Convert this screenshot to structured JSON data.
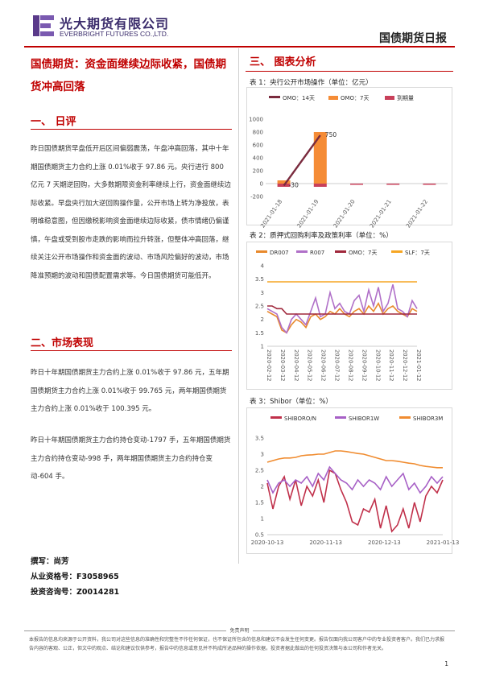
{
  "header": {
    "company_cn": "光大期货有限公司",
    "company_en": "EVERBRIGHT FUTURES CO.,LTD.",
    "report_type": "国债期货日报"
  },
  "left": {
    "title": "国债期货：资金面继续边际收紧，国债期货冲高回落",
    "section1": "一、  日评",
    "para1": "昨日国债期货早盘低开后区间偏弱震荡，午盘冲高回落，其中十年期国债期货主力合约上涨 0.01%收于 97.86 元。央行进行 800 亿元 7 天期逆回购，大多数期限资金利率继续上行，资金面继续边际收紧。早盘央行加大逆回购操作量，公开市场上转为净投放，表明维稳意图，但因缴税影响资金面继续边际收紧，债市情绪仍偏谨慎，午盘或受到股市走跌的影响而拉升转涨，但整体冲高回落，继续关注公开市场操作和资金面的波动、市场风险偏好的波动，市场降准预期的波动和国债配置需求等。今日国债期货可能低开。",
    "section2": "二、市场表现",
    "para2": "昨日十年期国债期货主力合约上涨 0.01%收于 97.86 元，五年期国债期货主力合约上涨 0.01%收于 99.765 元，两年期国债期货主力合约上涨 0.01%收于 100.395 元。",
    "para3": "昨日十年期国债期货主力合约持仓变动-1797 手，五年期国债期货主力合约持仓变动-998 手，两年期国债期货主力合约持仓变动-604 手。",
    "author": "撰写：尚芳",
    "cert": "从业资格号：F3058965",
    "advisor": "投资咨询号：Z0014281"
  },
  "right": {
    "section3": "三、  图表分析",
    "fig1_caption": "表 1：央行公开市场操作（单位：亿元）",
    "fig2_caption": "表 2：质押式回购利率及政策利率（单位：%）",
    "fig3_caption": "表 3：Shibor（单位：%）"
  },
  "footer": {
    "disclaimer_title": "免责声明",
    "disclaimer": "本报告的信息均来源于公开资料，我公司对这些信息的准确性和完整性不作任何保证，也不保证所包含的信息和建议不会发生任何变更。报告仅面向我公司客户中的专业投资者客户。我们已力求报告内容的客观、公正，但文中的观点、结论和建议仅供参考，报告中的信息或意见并不构成所述品种的操作依据，投资者据此做出的任何投资决策与本公司和作者无关。",
    "page": "1"
  },
  "colors": {
    "accent": "#c00000",
    "brand": "#3a2b6b"
  },
  "chart_data": [
    {
      "type": "bar",
      "title": "",
      "legend": [
        "OMO：14天",
        "OMO：7天",
        "到期量"
      ],
      "legend_placement": "top",
      "categories": [
        "2021-01-18",
        "2021-01-19",
        "2021-01-20",
        "2021-01-21",
        "2021-01-22"
      ],
      "series": [
        {
          "name": "OMO：14天",
          "kind": "line",
          "color": "#7a2b3e",
          "values": [
            -30,
            750,
            null,
            null,
            null
          ]
        },
        {
          "name": "OMO：7天",
          "kind": "bar",
          "color": "#f58c36",
          "values": [
            50,
            800,
            0,
            0,
            0
          ]
        },
        {
          "name": "到期量",
          "kind": "bar",
          "color": "#c8405a",
          "values": [
            -50,
            -50,
            -10,
            -10,
            -10
          ]
        }
      ],
      "data_labels": [
        {
          "category": "2021-01-18",
          "value": -30,
          "text": "-30"
        },
        {
          "category": "2021-01-19",
          "value": 750,
          "text": "750"
        }
      ],
      "yticks": [
        1000,
        800,
        600,
        400,
        200,
        0,
        -200
      ],
      "ylim": [
        -200,
        1000
      ],
      "grid": false
    },
    {
      "type": "line",
      "title": "",
      "legend": [
        "DR007",
        "R007",
        "OMO：7天",
        "SLF：7天"
      ],
      "legend_placement": "top",
      "x_ticks": [
        "2020-02-12",
        "2020-03-12",
        "2020-04-12",
        "2020-05-12",
        "2020-06-12",
        "2020-07-12",
        "2020-08-12",
        "2020-09-12",
        "2020-10-12",
        "2020-11-12",
        "2020-12-12",
        "2021-01-12"
      ],
      "yticks": [
        4,
        3.5,
        3,
        2.5,
        2,
        1.5,
        1
      ],
      "ylim": [
        1,
        4
      ],
      "series": [
        {
          "name": "DR007",
          "color": "#e8892c",
          "values": [
            2.3,
            2.2,
            2.1,
            1.6,
            1.5,
            1.8,
            2.0,
            1.9,
            1.7,
            2.1,
            2.2,
            2.0,
            2.1,
            2.3,
            2.2,
            2.4,
            2.2,
            2.1,
            2.3,
            2.4,
            2.2,
            2.5,
            2.3,
            2.6,
            2.2,
            2.4,
            2.5,
            2.3,
            2.2,
            2.1,
            2.4,
            2.3
          ]
        },
        {
          "name": "R007",
          "color": "#b070c8",
          "values": [
            2.4,
            2.3,
            2.2,
            1.7,
            1.5,
            2.0,
            2.2,
            2.0,
            1.8,
            2.3,
            2.8,
            2.1,
            2.2,
            3.0,
            2.4,
            2.6,
            2.3,
            2.2,
            2.7,
            2.9,
            2.3,
            3.1,
            2.5,
            3.2,
            2.3,
            2.6,
            3.3,
            2.4,
            2.3,
            2.1,
            2.7,
            2.4
          ]
        },
        {
          "name": "OMO：7天",
          "color": "#a0283c",
          "values": [
            2.5,
            2.5,
            2.4,
            2.4,
            2.2,
            2.2,
            2.2,
            2.2,
            2.2,
            2.2,
            2.2,
            2.2,
            2.2,
            2.2,
            2.2,
            2.2,
            2.2,
            2.2,
            2.2,
            2.2,
            2.2,
            2.2,
            2.2,
            2.2,
            2.2,
            2.2,
            2.2,
            2.2,
            2.2,
            2.2,
            2.2,
            2.2
          ]
        },
        {
          "name": "SLF：7天",
          "color": "#f6a623",
          "values": [
            3.4,
            3.4,
            3.4,
            3.4,
            3.4,
            3.4,
            3.4,
            3.4,
            3.4,
            3.4,
            3.4,
            3.4,
            3.4,
            3.4,
            3.4,
            3.4,
            3.4,
            3.4,
            3.4,
            3.4,
            3.4,
            3.4,
            3.4,
            3.4,
            3.4,
            3.4,
            3.4,
            3.4,
            3.4,
            3.4,
            3.4,
            3.4
          ]
        }
      ],
      "grid": false
    },
    {
      "type": "line",
      "title": "",
      "legend": [
        "SHIBORO/N",
        "SHIBOR1W",
        "SHIBOR3M"
      ],
      "legend_placement": "top",
      "x_ticks": [
        "2020-10-13",
        "2020-11-13",
        "2020-12-13",
        "2021-01-13"
      ],
      "yticks": [
        3.5,
        3,
        2.5,
        2,
        1.5,
        1,
        0.5
      ],
      "ylim": [
        0.5,
        3.5
      ],
      "series": [
        {
          "name": "SHIBORO/N",
          "color": "#c0304a",
          "values": [
            2.1,
            1.3,
            2.0,
            2.3,
            1.6,
            2.2,
            1.4,
            2.0,
            1.7,
            2.2,
            1.5,
            2.5,
            2.4,
            1.9,
            1.5,
            0.9,
            0.8,
            1.3,
            1.2,
            1.6,
            0.7,
            1.4,
            0.6,
            0.8,
            1.3,
            0.7,
            1.5,
            0.9,
            1.7,
            2.0,
            1.8,
            2.2
          ]
        },
        {
          "name": "SHIBOR1W",
          "color": "#a760c6",
          "values": [
            2.2,
            1.8,
            2.1,
            2.2,
            2.0,
            2.2,
            2.1,
            2.3,
            2.0,
            2.4,
            2.2,
            2.6,
            2.4,
            2.2,
            2.1,
            1.9,
            2.2,
            2.0,
            2.2,
            2.1,
            1.9,
            2.3,
            2.0,
            2.2,
            2.4,
            1.9,
            2.1,
            1.8,
            2.0,
            2.3,
            2.1,
            2.3
          ]
        },
        {
          "name": "SHIBOR3M",
          "color": "#f08c30",
          "values": [
            2.75,
            2.8,
            2.85,
            2.88,
            2.88,
            2.9,
            2.95,
            2.97,
            2.98,
            3.0,
            3.0,
            3.05,
            3.1,
            3.1,
            3.08,
            3.05,
            3.02,
            3.0,
            2.95,
            2.9,
            2.85,
            2.8,
            2.8,
            2.78,
            2.75,
            2.72,
            2.7,
            2.65,
            2.62,
            2.6,
            2.58,
            2.58
          ]
        }
      ],
      "grid": false
    }
  ]
}
